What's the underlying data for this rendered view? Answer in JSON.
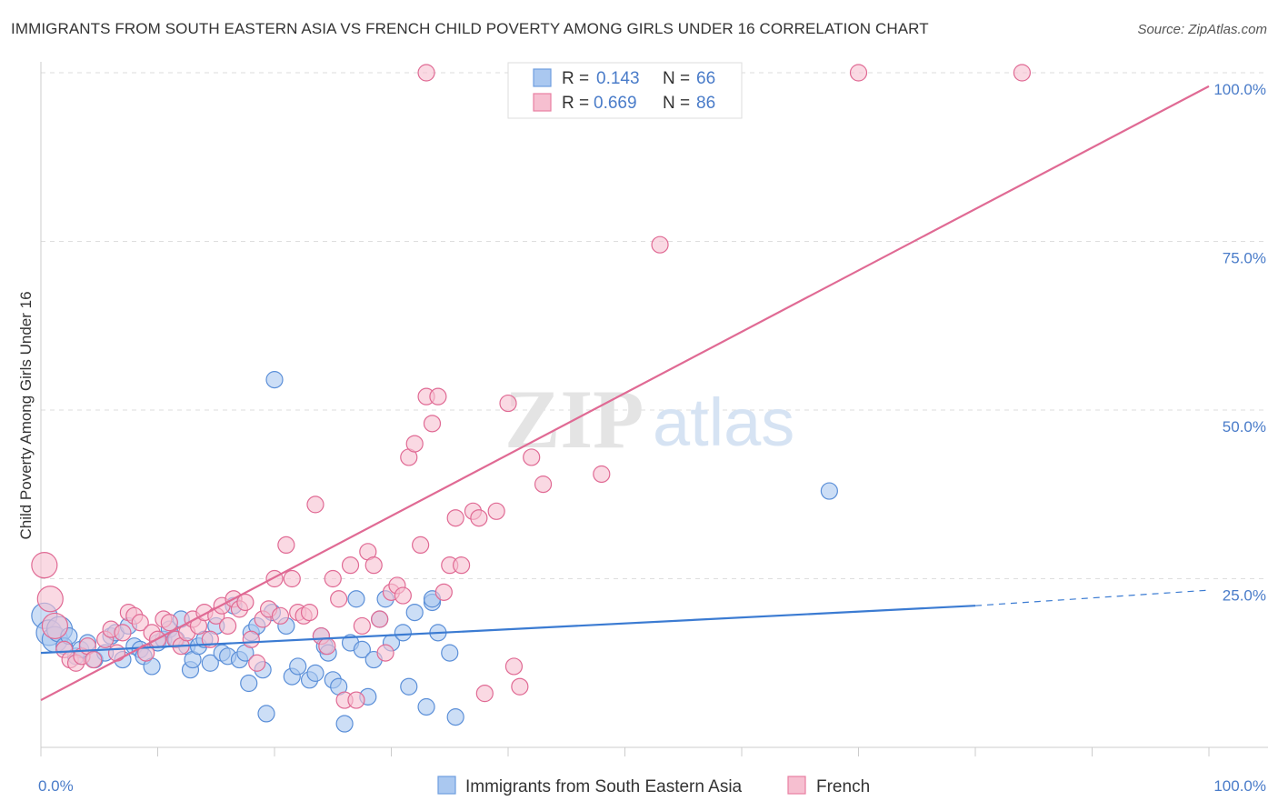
{
  "title": "IMMIGRANTS FROM SOUTH EASTERN ASIA VS FRENCH CHILD POVERTY AMONG GIRLS UNDER 16 CORRELATION CHART",
  "source": "Source: ZipAtlas.com",
  "watermark": {
    "zip": "ZIP",
    "atlas": "atlas"
  },
  "legend": {
    "r_label": "R =",
    "n_label": "N =",
    "rows": [
      {
        "r": "0.143",
        "n": "66",
        "color": "#6f9ee0",
        "fill": "#aac8f0"
      },
      {
        "r": "0.669",
        "n": "86",
        "color": "#e87fa2",
        "fill": "#f6bfd0"
      }
    ]
  },
  "chart_data": {
    "type": "scatter",
    "title": "IMMIGRANTS FROM SOUTH EASTERN ASIA VS FRENCH CHILD POVERTY AMONG GIRLS UNDER 16 CORRELATION CHART",
    "xlabel": "",
    "ylabel": "Child Poverty Among Girls Under 16",
    "xlim": [
      0,
      100
    ],
    "ylim": [
      0,
      100
    ],
    "x_tick_labels": [
      "0.0%",
      "100.0%"
    ],
    "y_tick_labels": [
      "25.0%",
      "50.0%",
      "75.0%",
      "100.0%"
    ],
    "y_ticks": [
      25,
      50,
      75,
      100
    ],
    "grid": true,
    "legend_position": "top-center",
    "series": [
      {
        "name": "Immigrants from South Eastern Asia",
        "color": "#5b8fd8",
        "fill": "#aac8f0",
        "trend": {
          "x0": 0,
          "y0": 14.0,
          "x1": 80,
          "y1": 21.0,
          "dashed_to": 100,
          "dashed_y": 23.3
        },
        "points": [
          [
            0.3,
            19.5
          ],
          [
            0.7,
            17
          ],
          [
            1.2,
            16
          ],
          [
            1.6,
            17.5
          ],
          [
            2,
            15
          ],
          [
            2.4,
            16.5
          ],
          [
            3,
            13.5
          ],
          [
            3.4,
            14.5
          ],
          [
            4,
            15.5
          ],
          [
            4.6,
            13
          ],
          [
            5.5,
            14
          ],
          [
            6,
            16.5
          ],
          [
            6.4,
            17
          ],
          [
            7,
            13
          ],
          [
            7.5,
            18
          ],
          [
            8,
            15
          ],
          [
            8.5,
            14.5
          ],
          [
            8.8,
            13.5
          ],
          [
            9.5,
            12
          ],
          [
            10,
            15.5
          ],
          [
            10.5,
            16
          ],
          [
            11,
            17.5
          ],
          [
            11.6,
            16
          ],
          [
            12,
            19
          ],
          [
            12.5,
            15
          ],
          [
            12.8,
            11.5
          ],
          [
            13,
            13
          ],
          [
            13.5,
            15
          ],
          [
            14,
            16
          ],
          [
            14.5,
            12.5
          ],
          [
            15,
            18
          ],
          [
            15.5,
            14
          ],
          [
            16,
            13.5
          ],
          [
            16.5,
            21
          ],
          [
            17,
            13
          ],
          [
            17.5,
            14
          ],
          [
            17.8,
            9.5
          ],
          [
            18,
            17
          ],
          [
            18.5,
            18
          ],
          [
            19,
            11.5
          ],
          [
            19.3,
            5
          ],
          [
            19.8,
            20
          ],
          [
            20,
            54.5
          ],
          [
            21,
            18
          ],
          [
            21.5,
            10.5
          ],
          [
            22,
            12
          ],
          [
            23,
            10
          ],
          [
            23.5,
            11
          ],
          [
            24,
            16.5
          ],
          [
            24.3,
            15
          ],
          [
            24.6,
            14
          ],
          [
            25,
            10
          ],
          [
            25.5,
            9
          ],
          [
            26,
            3.5
          ],
          [
            26.5,
            15.5
          ],
          [
            27,
            22
          ],
          [
            27.5,
            14.5
          ],
          [
            28,
            7.5
          ],
          [
            28.5,
            13
          ],
          [
            29,
            19
          ],
          [
            29.5,
            22
          ],
          [
            30,
            15.5
          ],
          [
            31,
            17
          ],
          [
            31.5,
            9
          ],
          [
            32,
            20
          ],
          [
            33,
            6
          ],
          [
            33.5,
            21.5
          ],
          [
            34,
            17
          ],
          [
            33.5,
            22
          ],
          [
            35,
            14
          ],
          [
            35.5,
            4.5
          ],
          [
            67.5,
            38
          ]
        ]
      },
      {
        "name": "French",
        "color": "#e06a94",
        "fill": "#f6bfd0",
        "trend": {
          "x0": 0,
          "y0": 7.0,
          "x1": 100,
          "y1": 98.0
        },
        "points": [
          [
            0.3,
            27
          ],
          [
            0.8,
            22
          ],
          [
            1.2,
            18
          ],
          [
            2,
            14.5
          ],
          [
            2.5,
            13
          ],
          [
            3,
            12.5
          ],
          [
            3.5,
            13.5
          ],
          [
            4,
            15
          ],
          [
            4.5,
            13
          ],
          [
            5.5,
            16
          ],
          [
            6,
            17.5
          ],
          [
            6.5,
            14
          ],
          [
            7,
            17
          ],
          [
            7.5,
            20
          ],
          [
            8,
            19.5
          ],
          [
            8.5,
            18.5
          ],
          [
            9,
            14
          ],
          [
            9.5,
            17
          ],
          [
            10,
            16
          ],
          [
            10.5,
            19
          ],
          [
            11,
            18.5
          ],
          [
            11.5,
            16
          ],
          [
            12,
            15
          ],
          [
            12.5,
            17
          ],
          [
            13,
            19
          ],
          [
            13.5,
            18
          ],
          [
            14,
            20
          ],
          [
            14.5,
            16
          ],
          [
            15,
            19.5
          ],
          [
            15.5,
            21
          ],
          [
            16,
            18
          ],
          [
            16.5,
            22
          ],
          [
            17,
            20.5
          ],
          [
            17.5,
            21.5
          ],
          [
            18,
            16
          ],
          [
            18.5,
            12.5
          ],
          [
            19,
            19
          ],
          [
            19.5,
            20.5
          ],
          [
            20,
            25
          ],
          [
            20.5,
            19.5
          ],
          [
            21,
            30
          ],
          [
            21.5,
            25
          ],
          [
            22,
            20
          ],
          [
            22.5,
            19.5
          ],
          [
            23,
            20
          ],
          [
            23.5,
            36
          ],
          [
            24,
            16.5
          ],
          [
            24.5,
            15
          ],
          [
            25,
            25
          ],
          [
            25.5,
            22
          ],
          [
            26,
            7
          ],
          [
            26.5,
            27
          ],
          [
            27,
            7
          ],
          [
            27.5,
            18
          ],
          [
            28,
            29
          ],
          [
            28.5,
            27
          ],
          [
            29,
            19
          ],
          [
            29.5,
            14
          ],
          [
            30,
            23
          ],
          [
            30.5,
            24
          ],
          [
            31,
            22.5
          ],
          [
            31.5,
            43
          ],
          [
            32,
            45
          ],
          [
            32.5,
            30
          ],
          [
            33,
            52
          ],
          [
            33.5,
            48
          ],
          [
            34,
            52
          ],
          [
            34.5,
            23
          ],
          [
            35,
            27
          ],
          [
            35.5,
            34
          ],
          [
            36,
            27
          ],
          [
            37,
            35
          ],
          [
            37.5,
            34
          ],
          [
            38,
            8
          ],
          [
            39,
            35
          ],
          [
            40,
            51
          ],
          [
            40.5,
            12
          ],
          [
            41,
            9
          ],
          [
            42,
            43
          ],
          [
            43,
            39
          ],
          [
            48,
            40.5
          ],
          [
            53,
            74.5
          ],
          [
            33,
            100
          ],
          [
            70,
            100
          ],
          [
            84,
            100
          ]
        ]
      }
    ]
  },
  "bottom_legend": [
    {
      "label": "Immigrants from South Eastern Asia"
    },
    {
      "label": "French"
    }
  ]
}
